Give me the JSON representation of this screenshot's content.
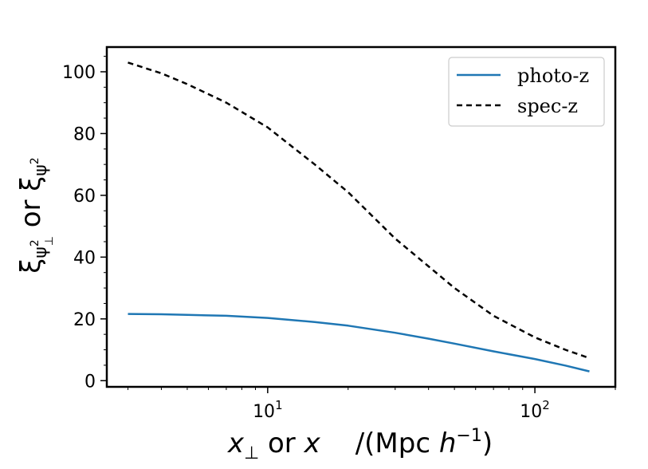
{
  "chart_data": {
    "type": "line",
    "xscale": "log",
    "xlim": [
      2.5,
      200
    ],
    "ylim": [
      -2,
      108
    ],
    "grid": false,
    "legend_position": "top-right",
    "xlabel": {
      "part1_main": "x",
      "part1_sub": "⊥",
      "part2": " or ",
      "part3": "x",
      "part4": "/(Mpc ",
      "part5": "h",
      "part5_sup": "−1",
      "part6": ")"
    },
    "ylabel": {
      "a_main": "ξ",
      "a_sub": "ψ",
      "a_sub_sup": "2",
      "a_sub_sub": "⊥",
      "middle": " or ",
      "b_main": "ξ",
      "b_sub": "ψ",
      "b_sub_sup": "2"
    },
    "y_ticks": [
      {
        "value": 0,
        "label": "0"
      },
      {
        "value": 20,
        "label": "20"
      },
      {
        "value": 40,
        "label": "40"
      },
      {
        "value": 60,
        "label": "60"
      },
      {
        "value": 80,
        "label": "80"
      },
      {
        "value": 100,
        "label": "100"
      }
    ],
    "x_ticks": [
      {
        "value": 10,
        "base": "10",
        "exp": "1"
      },
      {
        "value": 100,
        "base": "10",
        "exp": "2"
      }
    ],
    "series": [
      {
        "name": "photo-z",
        "color": "#1f77b4",
        "style": "solid",
        "x": [
          3,
          4,
          5,
          7,
          10,
          15,
          20,
          30,
          40,
          50,
          70,
          100,
          130,
          160
        ],
        "y": [
          21.6,
          21.5,
          21.3,
          21.0,
          20.3,
          19.0,
          17.8,
          15.5,
          13.6,
          12.0,
          9.5,
          7.0,
          4.9,
          3.0
        ]
      },
      {
        "name": "spec-z",
        "color": "#000000",
        "style": "dashed",
        "x": [
          3,
          4,
          5,
          7,
          10,
          15,
          20,
          30,
          40,
          50,
          70,
          100,
          130,
          160
        ],
        "y": [
          103,
          99.5,
          96,
          90,
          82,
          70,
          61,
          46,
          37,
          30,
          21,
          14,
          10,
          7.3
        ]
      }
    ]
  }
}
